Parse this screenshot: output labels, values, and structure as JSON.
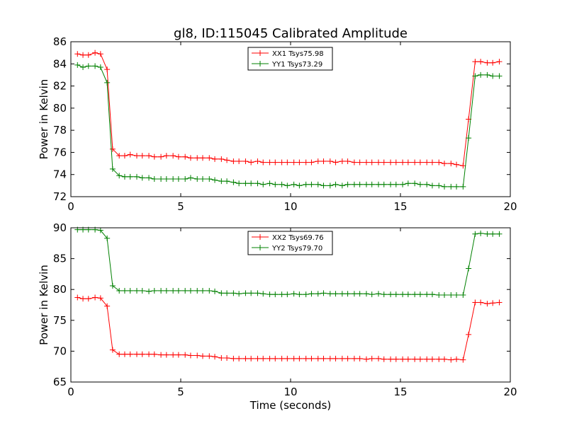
{
  "figure_title": "gl8, ID:115045 Calibrated Amplitude",
  "chart_data": [
    {
      "type": "line",
      "ylabel": "Power in Kelvin",
      "xlabel": "",
      "xlim": [
        0,
        20
      ],
      "ylim": [
        72,
        86
      ],
      "x_ticks": [
        "0",
        "5",
        "10",
        "15",
        "20"
      ],
      "y_ticks": [
        "72",
        "74",
        "76",
        "78",
        "80",
        "82",
        "84",
        "86"
      ],
      "grid": false,
      "legend_position": "top-center",
      "series": [
        {
          "name": "XX1 Tsys75.98",
          "color": "#ff0000",
          "x": [
            0.3,
            0.55,
            0.8,
            1.1,
            1.35,
            1.65,
            1.9,
            2.2,
            2.45,
            2.7,
            3.0,
            3.25,
            3.55,
            3.8,
            4.1,
            4.35,
            4.65,
            4.9,
            5.2,
            5.45,
            5.75,
            6.0,
            6.3,
            6.55,
            6.85,
            7.1,
            7.4,
            7.65,
            7.95,
            8.2,
            8.5,
            8.75,
            9.05,
            9.3,
            9.6,
            9.85,
            10.15,
            10.4,
            10.7,
            10.95,
            11.25,
            11.5,
            11.8,
            12.05,
            12.35,
            12.6,
            12.9,
            13.15,
            13.45,
            13.7,
            14.0,
            14.25,
            14.55,
            14.8,
            15.1,
            15.35,
            15.65,
            15.9,
            16.2,
            16.45,
            16.75,
            17.0,
            17.3,
            17.55,
            17.85,
            18.1,
            18.4,
            18.65,
            18.95,
            19.2,
            19.5
          ],
          "values": [
            84.9,
            84.8,
            84.8,
            85.0,
            84.9,
            83.5,
            76.3,
            75.7,
            75.7,
            75.8,
            75.7,
            75.7,
            75.7,
            75.6,
            75.6,
            75.7,
            75.7,
            75.6,
            75.6,
            75.5,
            75.5,
            75.5,
            75.5,
            75.4,
            75.4,
            75.3,
            75.2,
            75.2,
            75.2,
            75.1,
            75.2,
            75.1,
            75.1,
            75.1,
            75.1,
            75.1,
            75.1,
            75.1,
            75.1,
            75.1,
            75.2,
            75.2,
            75.2,
            75.1,
            75.2,
            75.2,
            75.1,
            75.1,
            75.1,
            75.1,
            75.1,
            75.1,
            75.1,
            75.1,
            75.1,
            75.1,
            75.1,
            75.1,
            75.1,
            75.1,
            75.1,
            75.0,
            75.0,
            74.9,
            74.8,
            79.0,
            84.2,
            84.2,
            84.1,
            84.1,
            84.2
          ]
        },
        {
          "name": "YY1 Tsys73.29",
          "color": "#008000",
          "x": [
            0.3,
            0.55,
            0.8,
            1.1,
            1.35,
            1.65,
            1.9,
            2.2,
            2.45,
            2.7,
            3.0,
            3.25,
            3.55,
            3.8,
            4.1,
            4.35,
            4.65,
            4.9,
            5.2,
            5.45,
            5.75,
            6.0,
            6.3,
            6.55,
            6.85,
            7.1,
            7.4,
            7.65,
            7.95,
            8.2,
            8.5,
            8.75,
            9.05,
            9.3,
            9.6,
            9.85,
            10.15,
            10.4,
            10.7,
            10.95,
            11.25,
            11.5,
            11.8,
            12.05,
            12.35,
            12.6,
            12.9,
            13.15,
            13.45,
            13.7,
            14.0,
            14.25,
            14.55,
            14.8,
            15.1,
            15.35,
            15.65,
            15.9,
            16.2,
            16.45,
            16.75,
            17.0,
            17.3,
            17.55,
            17.85,
            18.1,
            18.4,
            18.65,
            18.95,
            19.2,
            19.5
          ],
          "values": [
            83.9,
            83.7,
            83.8,
            83.8,
            83.7,
            82.3,
            74.5,
            73.9,
            73.8,
            73.8,
            73.8,
            73.7,
            73.7,
            73.6,
            73.6,
            73.6,
            73.6,
            73.6,
            73.6,
            73.7,
            73.6,
            73.6,
            73.6,
            73.5,
            73.4,
            73.4,
            73.3,
            73.2,
            73.2,
            73.2,
            73.2,
            73.1,
            73.2,
            73.1,
            73.1,
            73.0,
            73.1,
            73.0,
            73.1,
            73.1,
            73.1,
            73.0,
            73.0,
            73.1,
            73.0,
            73.1,
            73.1,
            73.1,
            73.1,
            73.1,
            73.1,
            73.1,
            73.1,
            73.1,
            73.1,
            73.2,
            73.2,
            73.1,
            73.1,
            73.0,
            73.0,
            72.9,
            72.9,
            72.9,
            72.9,
            77.3,
            82.9,
            83.0,
            83.0,
            82.9,
            82.9
          ]
        }
      ]
    },
    {
      "type": "line",
      "ylabel": "Power in Kelvin",
      "xlabel": "Time (seconds)",
      "xlim": [
        0,
        20
      ],
      "ylim": [
        65,
        90
      ],
      "x_ticks": [
        "0",
        "5",
        "10",
        "15",
        "20"
      ],
      "y_ticks": [
        "65",
        "70",
        "75",
        "80",
        "85",
        "90"
      ],
      "grid": false,
      "legend_position": "top-center",
      "series": [
        {
          "name": "XX2 Tsys69.76",
          "color": "#ff0000",
          "x": [
            0.3,
            0.55,
            0.8,
            1.1,
            1.35,
            1.65,
            1.9,
            2.2,
            2.45,
            2.7,
            3.0,
            3.25,
            3.55,
            3.8,
            4.1,
            4.35,
            4.65,
            4.9,
            5.2,
            5.45,
            5.75,
            6.0,
            6.3,
            6.55,
            6.85,
            7.1,
            7.4,
            7.65,
            7.95,
            8.2,
            8.5,
            8.75,
            9.05,
            9.3,
            9.6,
            9.85,
            10.15,
            10.4,
            10.7,
            10.95,
            11.25,
            11.5,
            11.8,
            12.05,
            12.35,
            12.6,
            12.9,
            13.15,
            13.45,
            13.7,
            14.0,
            14.25,
            14.55,
            14.8,
            15.1,
            15.35,
            15.65,
            15.9,
            16.2,
            16.45,
            16.75,
            17.0,
            17.3,
            17.55,
            17.85,
            18.1,
            18.4,
            18.65,
            18.95,
            19.2,
            19.5
          ],
          "values": [
            78.7,
            78.5,
            78.5,
            78.7,
            78.6,
            77.3,
            70.2,
            69.5,
            69.5,
            69.5,
            69.5,
            69.5,
            69.5,
            69.5,
            69.4,
            69.4,
            69.4,
            69.4,
            69.4,
            69.3,
            69.3,
            69.2,
            69.2,
            69.1,
            68.9,
            68.9,
            68.8,
            68.8,
            68.8,
            68.8,
            68.8,
            68.8,
            68.8,
            68.8,
            68.8,
            68.8,
            68.8,
            68.8,
            68.8,
            68.8,
            68.8,
            68.8,
            68.8,
            68.8,
            68.8,
            68.8,
            68.8,
            68.8,
            68.7,
            68.8,
            68.8,
            68.7,
            68.7,
            68.7,
            68.7,
            68.7,
            68.7,
            68.7,
            68.7,
            68.7,
            68.7,
            68.7,
            68.6,
            68.7,
            68.6,
            72.7,
            77.9,
            77.9,
            77.7,
            77.8,
            77.9
          ]
        },
        {
          "name": "YY2 Tsys79.70",
          "color": "#008000",
          "x": [
            0.3,
            0.55,
            0.8,
            1.1,
            1.35,
            1.65,
            1.9,
            2.2,
            2.45,
            2.7,
            3.0,
            3.25,
            3.55,
            3.8,
            4.1,
            4.35,
            4.65,
            4.9,
            5.2,
            5.45,
            5.75,
            6.0,
            6.3,
            6.55,
            6.85,
            7.1,
            7.4,
            7.65,
            7.95,
            8.2,
            8.5,
            8.75,
            9.05,
            9.3,
            9.6,
            9.85,
            10.15,
            10.4,
            10.7,
            10.95,
            11.25,
            11.5,
            11.8,
            12.05,
            12.35,
            12.6,
            12.9,
            13.15,
            13.45,
            13.7,
            14.0,
            14.25,
            14.55,
            14.8,
            15.1,
            15.35,
            15.65,
            15.9,
            16.2,
            16.45,
            16.75,
            17.0,
            17.3,
            17.55,
            17.85,
            18.1,
            18.4,
            18.65,
            18.95,
            19.2,
            19.5
          ],
          "values": [
            89.7,
            89.7,
            89.7,
            89.7,
            89.6,
            88.3,
            80.6,
            79.8,
            79.8,
            79.8,
            79.8,
            79.8,
            79.7,
            79.8,
            79.8,
            79.8,
            79.8,
            79.8,
            79.8,
            79.8,
            79.8,
            79.8,
            79.8,
            79.7,
            79.4,
            79.4,
            79.4,
            79.3,
            79.4,
            79.4,
            79.4,
            79.3,
            79.2,
            79.2,
            79.2,
            79.2,
            79.3,
            79.2,
            79.2,
            79.3,
            79.3,
            79.4,
            79.3,
            79.3,
            79.3,
            79.3,
            79.3,
            79.3,
            79.3,
            79.2,
            79.3,
            79.2,
            79.2,
            79.2,
            79.2,
            79.2,
            79.2,
            79.2,
            79.2,
            79.2,
            79.1,
            79.1,
            79.1,
            79.1,
            79.1,
            83.4,
            89.0,
            89.1,
            89.0,
            89.0,
            89.0
          ]
        }
      ]
    }
  ]
}
